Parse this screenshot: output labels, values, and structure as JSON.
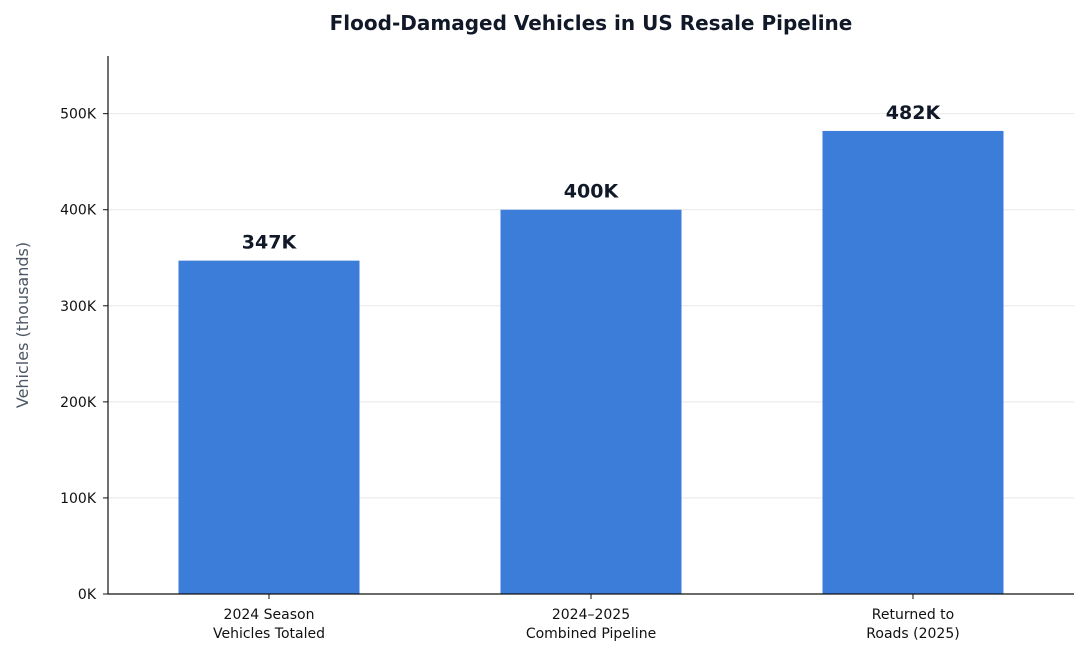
{
  "chart_data": {
    "type": "bar",
    "title": "Flood-Damaged Vehicles in US Resale Pipeline",
    "xlabel": "",
    "ylabel": "Vehicles (thousands)",
    "categories": [
      [
        "2024 Season",
        "Vehicles Totaled"
      ],
      [
        "2024–2025",
        "Combined Pipeline"
      ],
      [
        "Returned to",
        "Roads (2025)"
      ]
    ],
    "values": [
      347,
      400,
      482
    ],
    "data_labels": [
      "347K",
      "400K",
      "482K"
    ],
    "yticks": [
      0,
      100,
      200,
      300,
      400,
      500
    ],
    "ytick_labels": [
      "0K",
      "100K",
      "200K",
      "300K",
      "400K",
      "500K"
    ],
    "ylim": [
      0,
      560
    ],
    "grid": "horizontal",
    "colors": {
      "bar": "#3b7dd8",
      "grid": "#e8e8e8",
      "axis": "#111111"
    }
  }
}
